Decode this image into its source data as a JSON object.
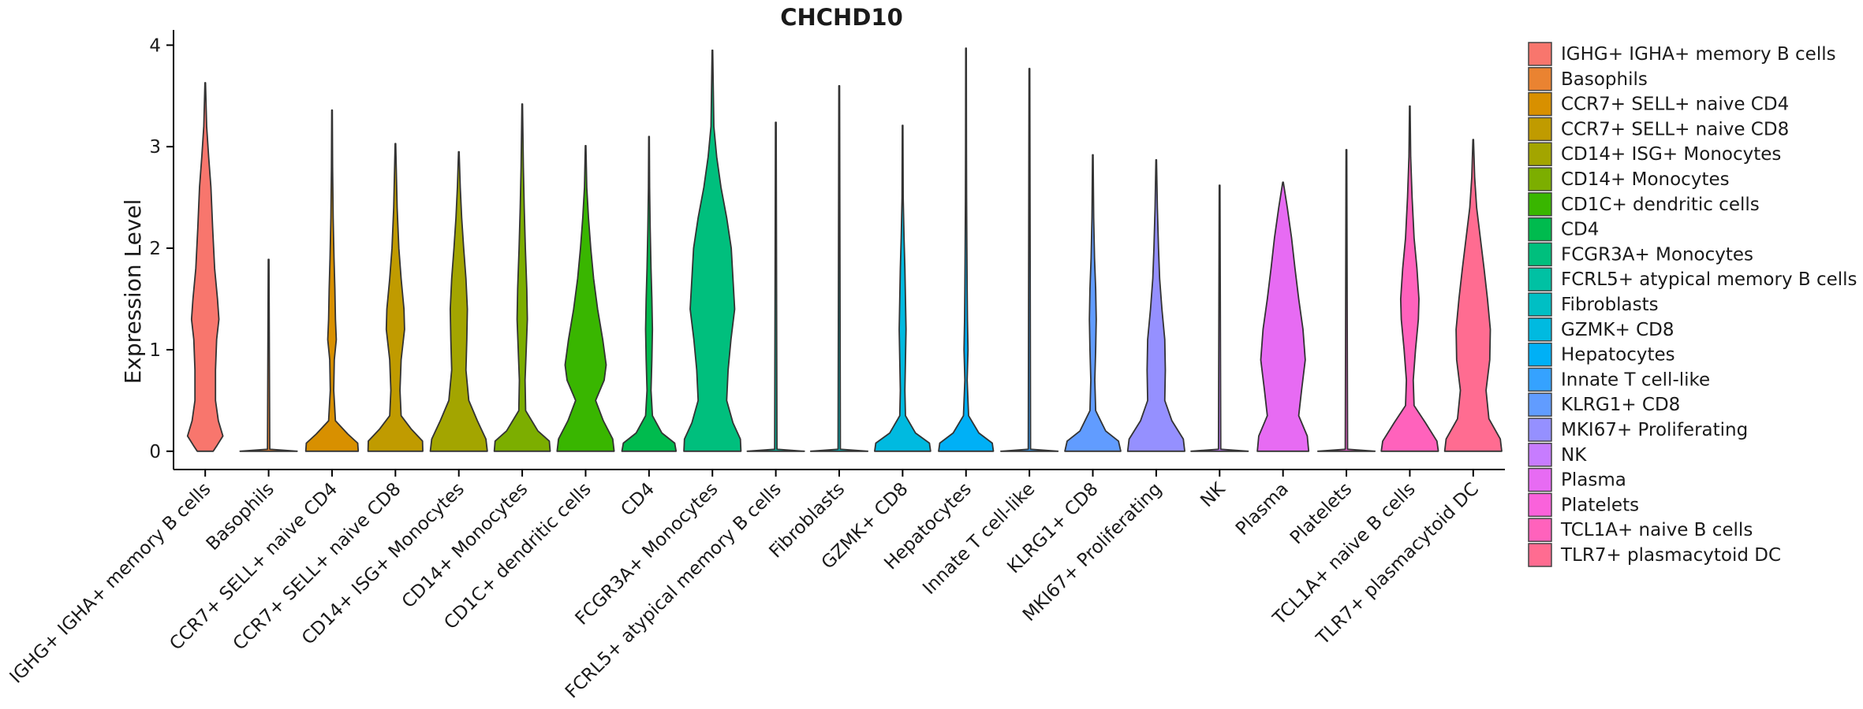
{
  "chart_data": {
    "type": "violin",
    "title": "CHCHD10",
    "xlabel": "",
    "ylabel": "Expression Level",
    "ylim": [
      -0.18,
      4.15
    ],
    "yticks": [
      0,
      1,
      2,
      3,
      4
    ],
    "legend_position": "right",
    "series": [
      {
        "name": " IGHG+ IGHA+ memory B cells",
        "color": "#F8766D",
        "max": 3.63,
        "shape": [
          [
            0,
            0.28
          ],
          [
            0.06,
            0.42
          ],
          [
            0.15,
            0.62
          ],
          [
            0.3,
            0.46
          ],
          [
            0.5,
            0.36
          ],
          [
            0.8,
            0.36
          ],
          [
            1.1,
            0.4
          ],
          [
            1.3,
            0.48
          ],
          [
            1.5,
            0.43
          ],
          [
            1.8,
            0.33
          ],
          [
            2.2,
            0.26
          ],
          [
            2.6,
            0.2
          ],
          [
            2.9,
            0.12
          ],
          [
            3.2,
            0.05
          ],
          [
            3.63,
            0.01
          ]
        ]
      },
      {
        "name": "Basophils",
        "color": "#EA8331",
        "max": 1.89,
        "shape": [
          [
            0,
            1.0
          ],
          [
            0.02,
            0.04
          ],
          [
            1.89,
            0.012
          ]
        ]
      },
      {
        "name": "CCR7+ SELL+ naive CD4",
        "color": "#D89000",
        "max": 3.36,
        "shape": [
          [
            0,
            0.92
          ],
          [
            0.08,
            0.9
          ],
          [
            0.17,
            0.55
          ],
          [
            0.3,
            0.12
          ],
          [
            0.6,
            0.06
          ],
          [
            0.9,
            0.08
          ],
          [
            1.1,
            0.15
          ],
          [
            1.3,
            0.12
          ],
          [
            1.6,
            0.1
          ],
          [
            1.9,
            0.07
          ],
          [
            2.3,
            0.04
          ],
          [
            2.8,
            0.02
          ],
          [
            3.36,
            0.01
          ]
        ]
      },
      {
        "name": "CCR7+ SELL+ naive CD8",
        "color": "#C09B00",
        "max": 3.03,
        "shape": [
          [
            0,
            0.96
          ],
          [
            0.1,
            0.95
          ],
          [
            0.22,
            0.55
          ],
          [
            0.35,
            0.2
          ],
          [
            0.6,
            0.16
          ],
          [
            0.9,
            0.2
          ],
          [
            1.2,
            0.32
          ],
          [
            1.4,
            0.3
          ],
          [
            1.7,
            0.2
          ],
          [
            2.0,
            0.12
          ],
          [
            2.4,
            0.06
          ],
          [
            3.03,
            0.01
          ]
        ]
      },
      {
        "name": "CD14+ ISG+ Monocytes",
        "color": "#A3A500",
        "max": 2.95,
        "shape": [
          [
            0,
            1.0
          ],
          [
            0.12,
            0.95
          ],
          [
            0.3,
            0.65
          ],
          [
            0.5,
            0.35
          ],
          [
            0.8,
            0.25
          ],
          [
            1.1,
            0.28
          ],
          [
            1.4,
            0.3
          ],
          [
            1.7,
            0.25
          ],
          [
            2.0,
            0.17
          ],
          [
            2.3,
            0.1
          ],
          [
            2.6,
            0.05
          ],
          [
            2.95,
            0.01
          ]
        ]
      },
      {
        "name": "CD14+ Monocytes",
        "color": "#7CAE00",
        "max": 3.42,
        "shape": [
          [
            0,
            0.98
          ],
          [
            0.1,
            0.95
          ],
          [
            0.2,
            0.55
          ],
          [
            0.4,
            0.12
          ],
          [
            0.7,
            0.1
          ],
          [
            1.0,
            0.14
          ],
          [
            1.3,
            0.18
          ],
          [
            1.6,
            0.16
          ],
          [
            2.0,
            0.11
          ],
          [
            2.4,
            0.07
          ],
          [
            2.8,
            0.04
          ],
          [
            3.42,
            0.01
          ]
        ]
      },
      {
        "name": "CD1C+ dendritic cells",
        "color": "#39B600",
        "max": 3.01,
        "shape": [
          [
            0,
            1.0
          ],
          [
            0.12,
            0.95
          ],
          [
            0.3,
            0.62
          ],
          [
            0.5,
            0.35
          ],
          [
            0.7,
            0.65
          ],
          [
            0.85,
            0.72
          ],
          [
            1.1,
            0.6
          ],
          [
            1.4,
            0.42
          ],
          [
            1.7,
            0.28
          ],
          [
            2.0,
            0.18
          ],
          [
            2.3,
            0.1
          ],
          [
            2.6,
            0.04
          ],
          [
            3.01,
            0.01
          ]
        ]
      },
      {
        "name": "CD4",
        "color": "#00BB4E",
        "max": 3.1,
        "shape": [
          [
            0,
            0.95
          ],
          [
            0.08,
            0.9
          ],
          [
            0.18,
            0.45
          ],
          [
            0.35,
            0.12
          ],
          [
            0.6,
            0.07
          ],
          [
            0.9,
            0.1
          ],
          [
            1.2,
            0.12
          ],
          [
            1.5,
            0.1
          ],
          [
            1.8,
            0.07
          ],
          [
            2.2,
            0.04
          ],
          [
            2.6,
            0.02
          ],
          [
            3.1,
            0.01
          ]
        ]
      },
      {
        "name": "FCGR3A+ Monocytes",
        "color": "#00BF7D",
        "max": 3.95,
        "shape": [
          [
            0,
            1.0
          ],
          [
            0.12,
            0.98
          ],
          [
            0.28,
            0.72
          ],
          [
            0.5,
            0.5
          ],
          [
            0.8,
            0.55
          ],
          [
            1.1,
            0.65
          ],
          [
            1.4,
            0.78
          ],
          [
            1.7,
            0.72
          ],
          [
            2.0,
            0.66
          ],
          [
            2.3,
            0.5
          ],
          [
            2.6,
            0.3
          ],
          [
            2.9,
            0.15
          ],
          [
            3.2,
            0.05
          ],
          [
            3.95,
            0.01
          ]
        ]
      },
      {
        "name": "FCRL5+ atypical memory B cells",
        "color": "#00C1A3",
        "max": 3.24,
        "shape": [
          [
            0,
            1.0
          ],
          [
            0.02,
            0.04
          ],
          [
            3.24,
            0.012
          ]
        ]
      },
      {
        "name": "Fibroblasts",
        "color": "#00BFC4",
        "max": 3.6,
        "shape": [
          [
            0,
            1.0
          ],
          [
            0.02,
            0.04
          ],
          [
            3.6,
            0.012
          ]
        ]
      },
      {
        "name": "GZMK+ CD8",
        "color": "#00BAE0",
        "max": 3.21,
        "shape": [
          [
            0,
            0.98
          ],
          [
            0.08,
            0.94
          ],
          [
            0.18,
            0.45
          ],
          [
            0.35,
            0.1
          ],
          [
            0.6,
            0.08
          ],
          [
            0.9,
            0.1
          ],
          [
            1.2,
            0.12
          ],
          [
            1.5,
            0.1
          ],
          [
            1.8,
            0.08
          ],
          [
            2.1,
            0.05
          ],
          [
            2.5,
            0.02
          ],
          [
            3.21,
            0.01
          ]
        ]
      },
      {
        "name": "Hepatocytes",
        "color": "#00B0F6",
        "max": 3.97,
        "shape": [
          [
            0,
            0.96
          ],
          [
            0.08,
            0.92
          ],
          [
            0.18,
            0.45
          ],
          [
            0.35,
            0.09
          ],
          [
            0.7,
            0.04
          ],
          [
            1.0,
            0.07
          ],
          [
            1.3,
            0.05
          ],
          [
            1.6,
            0.04
          ],
          [
            2.0,
            0.03
          ],
          [
            2.5,
            0.02
          ],
          [
            3.0,
            0.015
          ],
          [
            3.97,
            0.01
          ]
        ]
      },
      {
        "name": "Innate T cell-like",
        "color": "#35A2FF",
        "max": 3.77,
        "shape": [
          [
            0,
            1.0
          ],
          [
            0.02,
            0.04
          ],
          [
            3.77,
            0.012
          ]
        ]
      },
      {
        "name": "KLRG1+ CD8",
        "color": "#619CFF",
        "max": 2.92,
        "shape": [
          [
            0,
            0.98
          ],
          [
            0.1,
            0.9
          ],
          [
            0.2,
            0.45
          ],
          [
            0.4,
            0.1
          ],
          [
            0.7,
            0.07
          ],
          [
            1.0,
            0.1
          ],
          [
            1.3,
            0.12
          ],
          [
            1.6,
            0.1
          ],
          [
            1.9,
            0.06
          ],
          [
            2.3,
            0.03
          ],
          [
            2.92,
            0.01
          ]
        ]
      },
      {
        "name": "MKI67+ Proliferating",
        "color": "#9590FF",
        "max": 2.87,
        "shape": [
          [
            0,
            1.0
          ],
          [
            0.12,
            0.95
          ],
          [
            0.3,
            0.55
          ],
          [
            0.5,
            0.3
          ],
          [
            0.8,
            0.32
          ],
          [
            1.1,
            0.3
          ],
          [
            1.4,
            0.2
          ],
          [
            1.7,
            0.12
          ],
          [
            2.0,
            0.08
          ],
          [
            2.4,
            0.04
          ],
          [
            2.87,
            0.01
          ]
        ]
      },
      {
        "name": "NK",
        "color": "#C77CFF",
        "max": 2.62,
        "shape": [
          [
            0,
            1.0
          ],
          [
            0.02,
            0.04
          ],
          [
            2.62,
            0.012
          ]
        ]
      },
      {
        "name": "Plasma",
        "color": "#E76BF3",
        "max": 2.65,
        "shape": [
          [
            0,
            0.9
          ],
          [
            0.15,
            0.85
          ],
          [
            0.35,
            0.55
          ],
          [
            0.6,
            0.65
          ],
          [
            0.9,
            0.78
          ],
          [
            1.2,
            0.7
          ],
          [
            1.5,
            0.55
          ],
          [
            1.8,
            0.42
          ],
          [
            2.1,
            0.3
          ],
          [
            2.4,
            0.15
          ],
          [
            2.65,
            0.01
          ]
        ]
      },
      {
        "name": "Platelets",
        "color": "#FA62DB",
        "max": 2.97,
        "shape": [
          [
            0,
            1.0
          ],
          [
            0.02,
            0.04
          ],
          [
            2.97,
            0.012
          ]
        ]
      },
      {
        "name": "TCL1A+ naive B cells",
        "color": "#FF62BC",
        "max": 3.4,
        "shape": [
          [
            0,
            1.0
          ],
          [
            0.1,
            0.95
          ],
          [
            0.28,
            0.55
          ],
          [
            0.45,
            0.15
          ],
          [
            0.7,
            0.12
          ],
          [
            1.0,
            0.2
          ],
          [
            1.3,
            0.3
          ],
          [
            1.5,
            0.32
          ],
          [
            1.8,
            0.25
          ],
          [
            2.1,
            0.15
          ],
          [
            2.5,
            0.08
          ],
          [
            2.9,
            0.03
          ],
          [
            3.4,
            0.01
          ]
        ]
      },
      {
        "name": "TLR7+ plasmacytoid DC",
        "color": "#FF6C91",
        "max": 3.07,
        "shape": [
          [
            0,
            1.0
          ],
          [
            0.12,
            0.95
          ],
          [
            0.32,
            0.55
          ],
          [
            0.6,
            0.45
          ],
          [
            0.9,
            0.58
          ],
          [
            1.2,
            0.6
          ],
          [
            1.5,
            0.5
          ],
          [
            1.8,
            0.38
          ],
          [
            2.1,
            0.25
          ],
          [
            2.4,
            0.12
          ],
          [
            2.7,
            0.05
          ],
          [
            3.07,
            0.01
          ]
        ]
      }
    ],
    "categories": [
      "IGHG+ IGHA+ memory B cells",
      "Basophils",
      "CCR7+ SELL+ naive CD4",
      "CCR7+ SELL+ naive CD8",
      "CD14+ ISG+ Monocytes",
      "CD14+ Monocytes",
      "CD1C+ dendritic cells",
      "CD4",
      "FCGR3A+ Monocytes",
      "FCRL5+ atypical memory B cells",
      "Fibroblasts",
      "GZMK+ CD8",
      "Hepatocytes",
      "Innate T cell-like",
      "KLRG1+ CD8",
      "MKI67+ Proliferating",
      "NK",
      "Plasma",
      "Platelets",
      "TCL1A+ naive B cells",
      "TLR7+ plasmacytoid DC"
    ]
  }
}
